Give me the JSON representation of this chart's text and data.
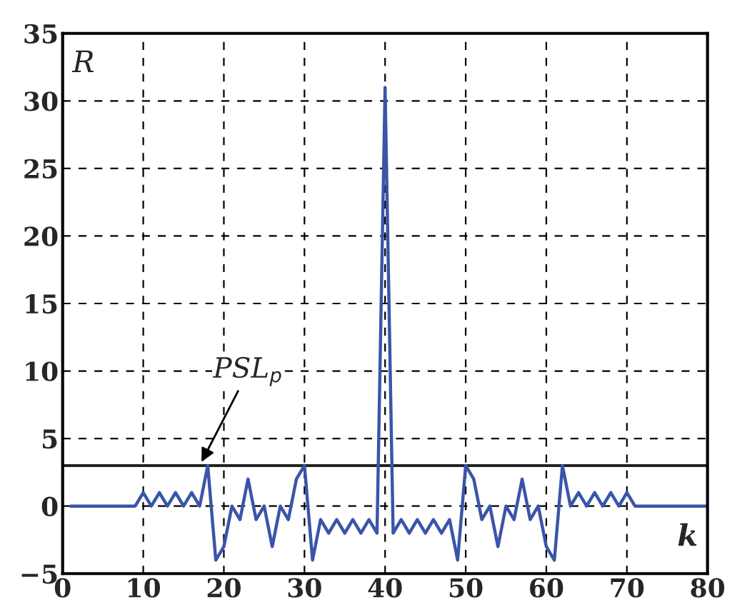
{
  "chart_data": {
    "type": "line",
    "xlabel": "k",
    "ylabel": "R",
    "x": [
      1,
      2,
      3,
      4,
      5,
      6,
      7,
      8,
      9,
      10,
      11,
      12,
      13,
      14,
      15,
      16,
      17,
      18,
      19,
      20,
      21,
      22,
      23,
      24,
      25,
      26,
      27,
      28,
      29,
      30,
      31,
      32,
      33,
      34,
      35,
      36,
      37,
      38,
      39,
      40,
      41,
      42,
      43,
      44,
      45,
      46,
      47,
      48,
      49,
      50,
      51,
      52,
      53,
      54,
      55,
      56,
      57,
      58,
      59,
      60,
      61,
      62,
      63,
      64,
      65,
      66,
      67,
      68,
      69,
      70,
      71,
      72,
      73,
      74,
      75,
      76,
      77,
      78,
      79,
      80
    ],
    "series": [
      {
        "color": "#3a55a8",
        "values": [
          0,
          0,
          0,
          0,
          0,
          0,
          0,
          0,
          0,
          1,
          0,
          1,
          0,
          1,
          0,
          1,
          0,
          3,
          -4,
          -3,
          0,
          -1,
          2,
          -1,
          0,
          -3,
          0,
          -1,
          2,
          3,
          -4,
          -1,
          -2,
          -1,
          -2,
          -1,
          -2,
          -1,
          -2,
          31,
          -2,
          -1,
          -2,
          -1,
          -2,
          -1,
          -2,
          -1,
          -4,
          3,
          2,
          -1,
          0,
          -3,
          0,
          -1,
          2,
          -1,
          0,
          -3,
          -4,
          3,
          0,
          1,
          0,
          1,
          0,
          1,
          0,
          1,
          0,
          0,
          0,
          0,
          0,
          0,
          0,
          0,
          0,
          0
        ]
      }
    ],
    "xlim": [
      0,
      80
    ],
    "ylim": [
      -5,
      35
    ],
    "xticks": [
      0,
      10,
      20,
      30,
      40,
      50,
      60,
      70,
      80
    ],
    "yticks": [
      -5,
      0,
      5,
      10,
      15,
      20,
      25,
      30,
      35
    ],
    "ref_lines": [
      {
        "axis": "y",
        "value": 3,
        "color": "#222222",
        "line_style": "solid"
      }
    ],
    "annotations": [
      {
        "text": "PSL$_{p}$",
        "x": 17,
        "y": 3
      }
    ],
    "grid": true,
    "marker": "none",
    "line_style": "solid",
    "legend": false
  }
}
